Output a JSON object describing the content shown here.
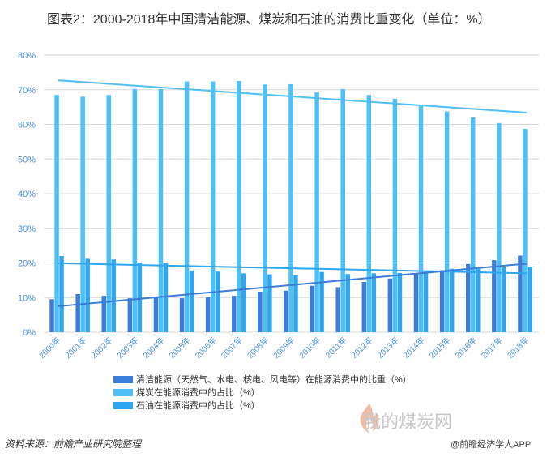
{
  "title": "图表2：2000-2018年中国清洁能源、煤炭和石油的消费比重变化（单位：%）",
  "source": "资料来源：前瞻产业研究院整理",
  "watermark_text": "我的煤炭网",
  "app_credit": "@前瞻经济学人APP",
  "chart_data": {
    "type": "bar",
    "title": "图表2：2000-2018年中国清洁能源、煤炭和石油的消费比重变化（单位：%）",
    "xlabel": "",
    "ylabel": "",
    "ylim": [
      0,
      80
    ],
    "yticks": [
      0,
      10,
      20,
      30,
      40,
      50,
      60,
      70,
      80
    ],
    "ytick_labels": [
      "0%",
      "10%",
      "20%",
      "30%",
      "40%",
      "50%",
      "60%",
      "70%",
      "80%"
    ],
    "grid": true,
    "legend_position": "bottom",
    "categories": [
      "2000年",
      "2001年",
      "2002年",
      "2003年",
      "2004年",
      "2005年",
      "2006年",
      "2007年",
      "2008年",
      "2009年",
      "2010年",
      "2011年",
      "2012年",
      "2013年",
      "2014年",
      "2015年",
      "2016年",
      "2017年",
      "2018年"
    ],
    "series": [
      {
        "name": "清洁能源（天然气、水电、核电、风电等）在能源消费中的比重（%）",
        "color": "#3b7dd8",
        "values": [
          9.5,
          11.0,
          10.5,
          9.8,
          10.3,
          9.8,
          10.2,
          10.5,
          11.7,
          12.0,
          13.4,
          13.0,
          14.5,
          15.5,
          16.9,
          17.9,
          19.7,
          20.8,
          22.1
        ]
      },
      {
        "name": "煤炭在能源消费中的占比（%）",
        "color": "#4fc0f7",
        "values": [
          68.5,
          68.0,
          68.5,
          70.2,
          70.2,
          72.4,
          72.4,
          72.5,
          71.5,
          71.6,
          69.2,
          70.2,
          68.5,
          67.4,
          65.6,
          63.7,
          62.0,
          60.4,
          58.7
        ]
      },
      {
        "name": "石油在能源消费中的占比（%）",
        "color": "#2ea6f0",
        "values": [
          22.0,
          21.2,
          21.0,
          20.1,
          19.9,
          17.8,
          17.5,
          17.0,
          16.7,
          16.4,
          17.4,
          16.8,
          17.0,
          17.1,
          17.4,
          18.3,
          18.3,
          18.8,
          18.9
        ]
      }
    ],
    "trendlines": [
      {
        "series": "煤炭在能源消费中的占比（%）",
        "color": "#4fc0f7",
        "from": 72.7,
        "to": 63.4
      },
      {
        "series": "石油在能源消费中的占比（%）",
        "color": "#2ea6f0",
        "from": 19.9,
        "to": 17.0
      },
      {
        "series": "清洁能源（天然气、水电、核电、风电等）在能源消费中的比重（%）",
        "color": "#3b7dd8",
        "from": 7.5,
        "to": 19.8
      }
    ]
  }
}
